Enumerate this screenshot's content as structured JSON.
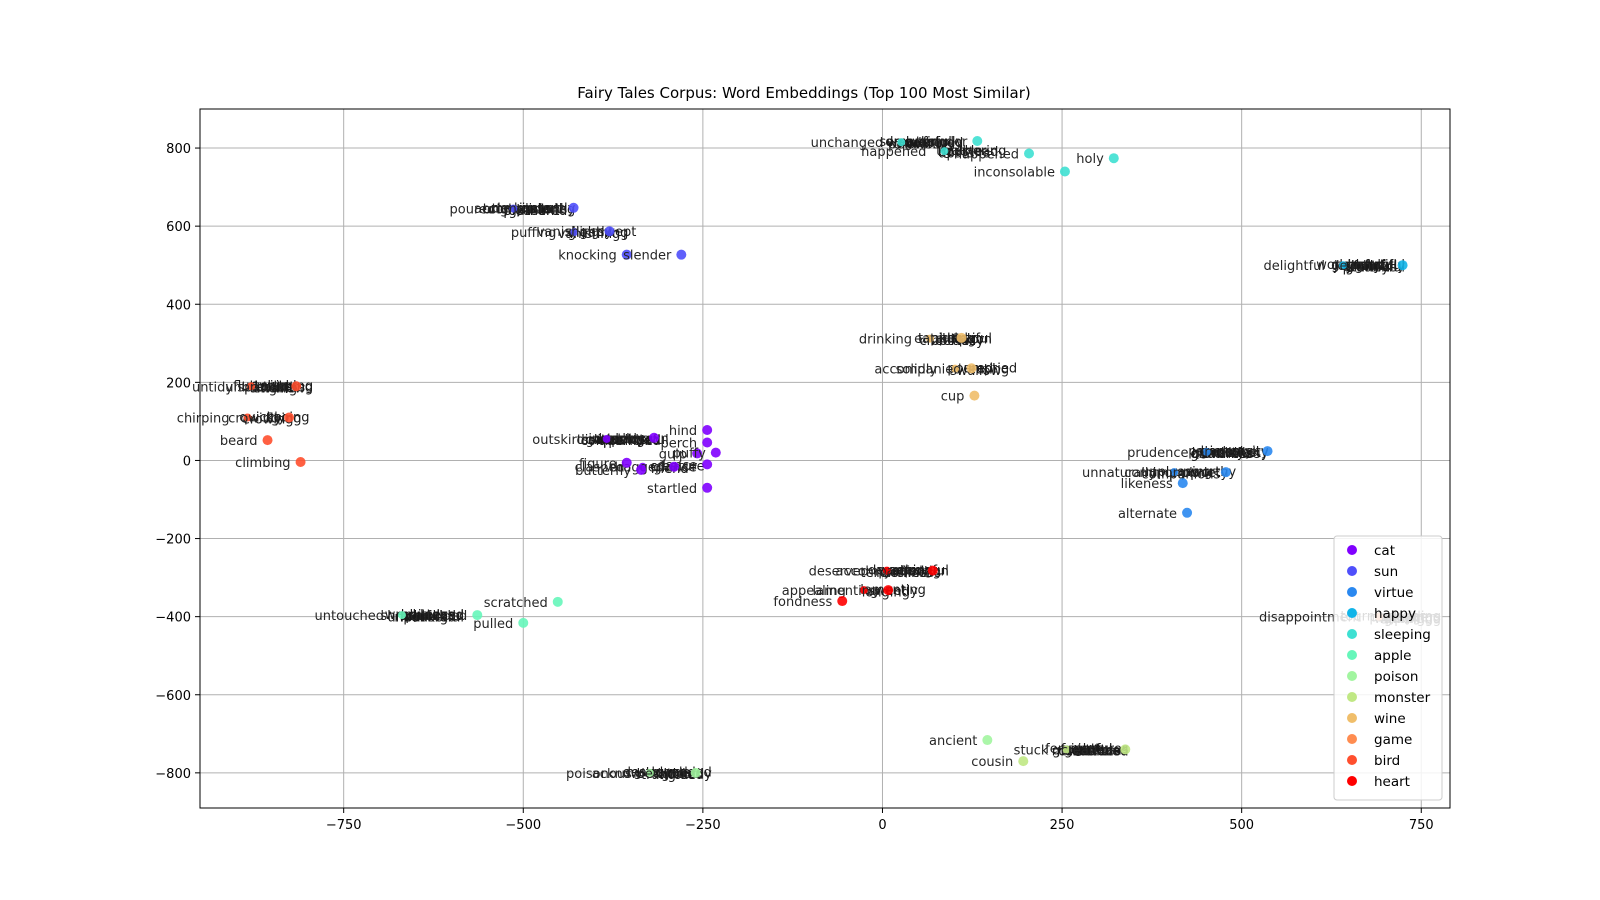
{
  "chart_data": {
    "type": "scatter",
    "title": "Fairy Tales Corpus: Word Embeddings (Top 100 Most Similar)",
    "xlabel": "",
    "ylabel": "",
    "xlim": [
      -950,
      790
    ],
    "ylim": [
      -890,
      900
    ],
    "xticks": [
      -750,
      -500,
      -250,
      0,
      250,
      500,
      750
    ],
    "yticks": [
      -800,
      -600,
      -400,
      -200,
      0,
      200,
      400,
      600,
      800
    ],
    "grid": true,
    "legend_position": "lower-right",
    "series": [
      {
        "name": "cat",
        "color": "#8000ff",
        "points": [
          {
            "x": -318,
            "y": 58,
            "label": "other"
          },
          {
            "x": -244,
            "y": 78,
            "label": "hind"
          },
          {
            "x": -244,
            "y": 46,
            "label": "perch"
          },
          {
            "x": -258,
            "y": 18,
            "label": "gulp"
          },
          {
            "x": -232,
            "y": 20,
            "label": "puffy"
          },
          {
            "x": -244,
            "y": -10,
            "label": "dance"
          },
          {
            "x": -290,
            "y": -16,
            "label": "dragged"
          },
          {
            "x": -356,
            "y": -6,
            "label": "figure"
          },
          {
            "x": -336,
            "y": -24,
            "label": "butterfly"
          },
          {
            "x": -244,
            "y": -70,
            "label": "startled"
          }
        ]
      },
      {
        "name": "sun",
        "color": "#4f4ffb",
        "points": [
          {
            "x": -430,
            "y": 647,
            "label": "accomplished"
          },
          {
            "x": -380,
            "y": 587,
            "label": "vanishing"
          },
          {
            "x": -356,
            "y": 527,
            "label": "knocking"
          },
          {
            "x": -280,
            "y": 527,
            "label": "slender"
          }
        ]
      },
      {
        "name": "virtue",
        "color": "#2a88f0",
        "points": [
          {
            "x": 536,
            "y": 24,
            "label": "prudence"
          },
          {
            "x": 478,
            "y": -30,
            "label": "commonplace"
          },
          {
            "x": 418,
            "y": -58,
            "label": "likeness"
          },
          {
            "x": 424,
            "y": -134,
            "label": "alternate"
          }
        ]
      },
      {
        "name": "happy",
        "color": "#11b4e8",
        "points": [
          {
            "x": 724,
            "y": 500,
            "label": "delighted"
          }
        ]
      },
      {
        "name": "sleeping",
        "color": "#3ee0d2",
        "points": [
          {
            "x": 132,
            "y": 818,
            "label": "thunder"
          },
          {
            "x": 204,
            "y": 786,
            "label": "happened"
          },
          {
            "x": 322,
            "y": 774,
            "label": "holy"
          },
          {
            "x": 254,
            "y": 740,
            "label": "inconsolable"
          }
        ]
      },
      {
        "name": "apple",
        "color": "#66f6ba",
        "points": [
          {
            "x": -564,
            "y": -396,
            "label": "unfolded"
          },
          {
            "x": -452,
            "y": -362,
            "label": "scratched"
          },
          {
            "x": -500,
            "y": -416,
            "label": "pulled"
          }
        ]
      },
      {
        "name": "poison",
        "color": "#a2f5a0",
        "points": [
          {
            "x": -260,
            "y": -800,
            "label": "acknowledged"
          },
          {
            "x": 146,
            "y": -716,
            "label": "ancient"
          }
        ]
      },
      {
        "name": "monster",
        "color": "#c0e884",
        "points": [
          {
            "x": 338,
            "y": -740,
            "label": "creature"
          },
          {
            "x": 196,
            "y": -770,
            "label": "cousin"
          }
        ]
      },
      {
        "name": "wine",
        "color": "#f0be6a",
        "points": [
          {
            "x": 110,
            "y": 314,
            "label": "eaten"
          },
          {
            "x": 124,
            "y": 236,
            "label": "accompanied"
          },
          {
            "x": 128,
            "y": 166,
            "label": "cup"
          }
        ]
      },
      {
        "name": "game",
        "color": "#ff8c50",
        "points": []
      },
      {
        "name": "bird",
        "color": "#ff4f2e",
        "points": [
          {
            "x": -816,
            "y": 190,
            "label": "unbroken"
          },
          {
            "x": -826,
            "y": 110,
            "label": "crowing"
          },
          {
            "x": -856,
            "y": 52,
            "label": "beard"
          },
          {
            "x": -810,
            "y": -4,
            "label": "climbing"
          }
        ]
      },
      {
        "name": "heart",
        "color": "#ff0000",
        "points": [
          {
            "x": 70,
            "y": -282,
            "label": "accompanied"
          },
          {
            "x": 8,
            "y": -332,
            "label": "lamenting"
          },
          {
            "x": -56,
            "y": -360,
            "label": "fondness"
          }
        ]
      }
    ],
    "clusters": [
      {
        "series": "cat",
        "x": -395,
        "y": 55,
        "lead_label": "outskirts",
        "stack": [
          "unknown",
          "disappointed",
          "companion",
          "instantly",
          "wonderful",
          "quarreled",
          "darkness",
          "glittering"
        ]
      },
      {
        "series": "cat",
        "x": -345,
        "y": -16,
        "lead_label": "clasped",
        "stack": [
          "creature",
          "glance",
          "friend"
        ]
      },
      {
        "series": "sun",
        "x": -525,
        "y": 645,
        "lead_label": "poured",
        "stack": [
          "instantly",
          "companions",
          "pleasant",
          "darkness",
          "wandering",
          "gathered",
          "merriment",
          "brightness"
        ]
      },
      {
        "series": "sun",
        "x": -440,
        "y": 585,
        "lead_label": "puffing",
        "stack": [
          "swept",
          "gleaming",
          "vanishing",
          "slightly"
        ]
      },
      {
        "series": "sleeping",
        "x": 15,
        "y": 815,
        "lead_label": "unchanged",
        "stack": [
          "cheerfully",
          "wandering",
          "drowsily",
          "sorrowful",
          "gathered",
          "peacefully",
          "dreaming"
        ]
      },
      {
        "series": "sleeping",
        "x": 75,
        "y": 792,
        "lead_label": "happened",
        "stack": [
          "gathering",
          "bedstead",
          "upstairs",
          "trouble"
        ]
      },
      {
        "series": "happy",
        "x": 630,
        "y": 500,
        "lead_label": "delightful",
        "stack": [
          "beautiful",
          "cheerful",
          "prettily",
          "wonderful",
          "merrily",
          "glorious",
          "gladness",
          "joyfully",
          "thankful",
          "grateful"
        ]
      },
      {
        "series": "wine",
        "x": 55,
        "y": 312,
        "lead_label": "drinking",
        "stack": [
          "plentiful",
          "liquor",
          "bottles",
          "tankard",
          "flagon",
          "cheerfully",
          "pitcher"
        ]
      },
      {
        "series": "wine",
        "x": 90,
        "y": 235,
        "lead_label": "solidly",
        "stack": [
          "emptied",
          "eating",
          "swallow",
          "poured"
        ]
      },
      {
        "series": "virtue",
        "x": 440,
        "y": 22,
        "lead_label": "prudence",
        "stack": [
          "generosity",
          "unselfish",
          "goodness",
          "patience",
          "modesty",
          "cleverness",
          "honesty",
          "humility"
        ]
      },
      {
        "series": "virtue",
        "x": 395,
        "y": -30,
        "lead_label": "unnaturally",
        "stack": [
          "unworthy",
          "impropriety",
          "companions",
          "unpleasing"
        ]
      },
      {
        "series": "heart",
        "x": -5,
        "y": -282,
        "lead_label": "deserved",
        "stack": [
          "sorrowful",
          "yearning",
          "tenderness",
          "devotion",
          "affection",
          "loneliness",
          "weeping"
        ]
      },
      {
        "series": "heart",
        "x": -37,
        "y": -332,
        "lead_label": "appealing",
        "stack": [
          "lamenting",
          "sweetly",
          "longing"
        ]
      },
      {
        "series": "apple",
        "x": -680,
        "y": -396,
        "lead_label": "untouched",
        "stack": [
          "squeezed",
          "plucked",
          "ripening",
          "wrinkled",
          "scratched",
          "uncovered",
          "bitten",
          "shriveled",
          "basketful"
        ]
      },
      {
        "series": "bird",
        "x": -890,
        "y": 190,
        "lead_label": "untidy",
        "stack": [
          "chirping",
          "feathers",
          "singing",
          "fluttered",
          "nestling",
          "swallow",
          "twitter",
          "sparrow"
        ]
      },
      {
        "series": "bird",
        "x": -895,
        "y": 110,
        "lead_label": "chirping",
        "stack": [
          "cooing",
          "flying",
          "crowing",
          "quickly"
        ]
      },
      {
        "series": "poison",
        "x": -335,
        "y": -800,
        "lead_label": "poisonous",
        "stack": [
          "murdered",
          "bewitched",
          "strangled",
          "destroyed",
          "deadly",
          "wicked",
          "maddened"
        ]
      },
      {
        "series": "monster",
        "x": 245,
        "y": -740,
        "lead_label": "stuck",
        "stack": [
          "creatures",
          "terrible",
          "dreadful",
          "ferocious",
          "hideous",
          "monstrous",
          "frightful",
          "gigantic",
          "wretched"
        ]
      },
      {
        "series": "game",
        "x": 680,
        "y": -400,
        "lead_label": "disappointment",
        "stack": [
          "gambling",
          "playing",
          "winning",
          "tournament",
          "strangers",
          "gaming",
          "player",
          "players",
          "sporting"
        ]
      }
    ]
  }
}
